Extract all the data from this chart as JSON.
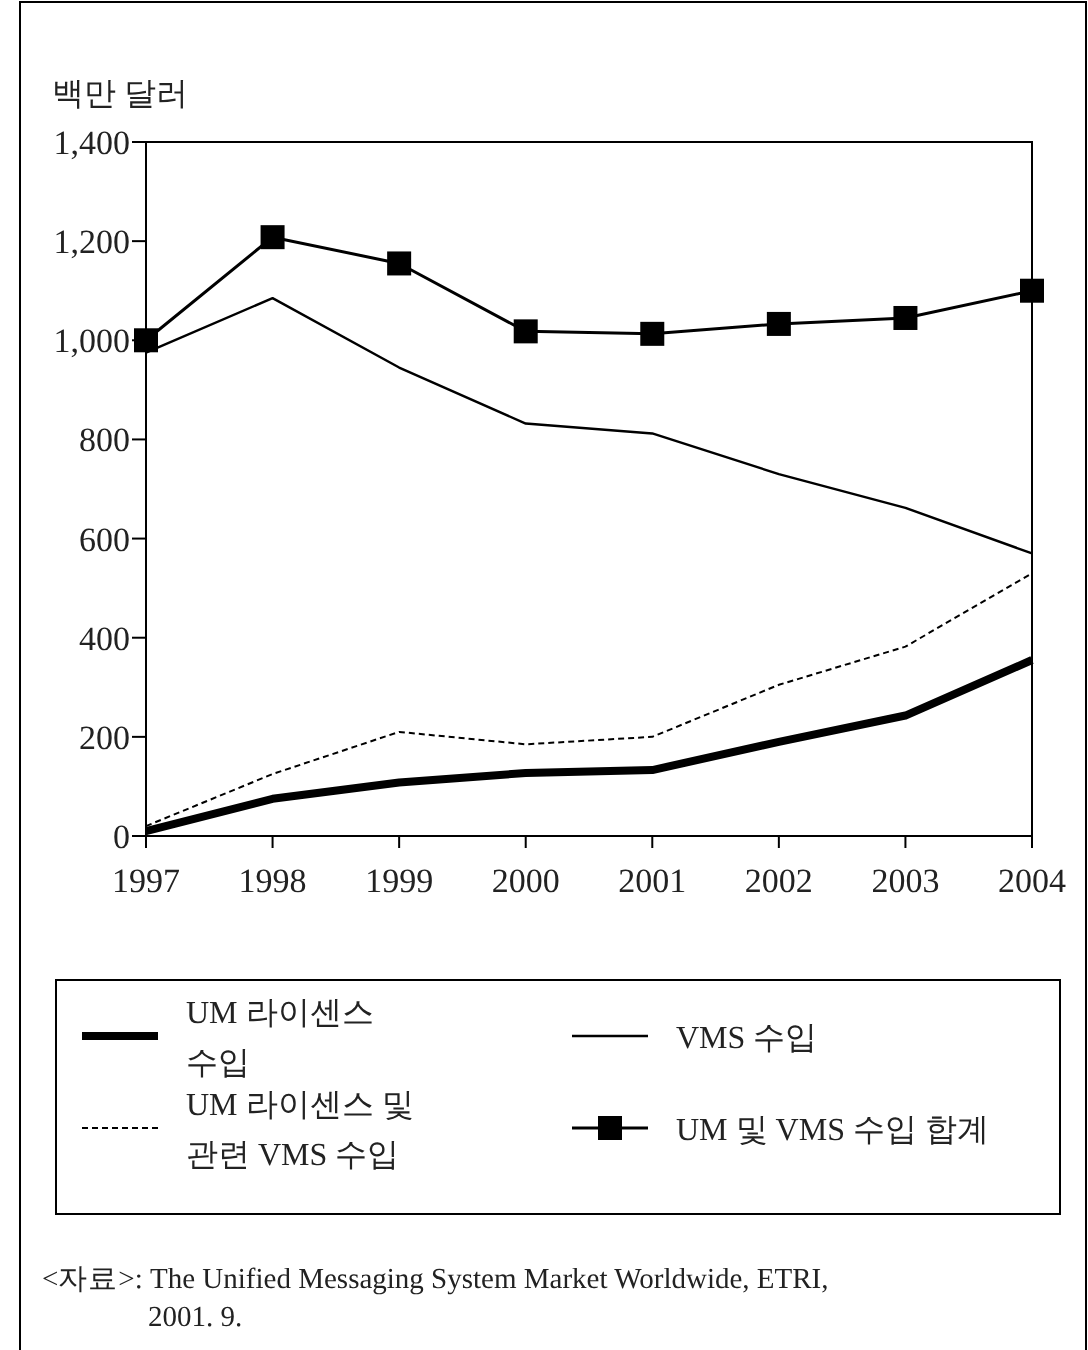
{
  "chart_data": {
    "type": "line",
    "ylabel": "백만 달러",
    "x": [
      1997,
      1998,
      1999,
      2000,
      2001,
      2002,
      2003,
      2004
    ],
    "xlim": [
      1997,
      2004
    ],
    "xticks": [
      1997,
      1998,
      1999,
      2000,
      2001,
      2002,
      2003,
      2004
    ],
    "ylim": [
      0,
      1400
    ],
    "yticks": [
      0,
      {
        "value": 200,
        "label": "200"
      },
      {
        "value": 400,
        "label": "400"
      },
      {
        "value": 600,
        "label": "600"
      },
      {
        "value": 800,
        "label": "800"
      },
      {
        "value": 1000,
        "label": "1,000"
      },
      {
        "value": 1200,
        "label": "1,200"
      },
      {
        "value": 1400,
        "label": "1,400"
      }
    ],
    "grid": false,
    "legend": "bottom",
    "series": [
      {
        "name": "UM 라이센스 수입",
        "color": "#000000",
        "line_style": "solid",
        "marker": "none",
        "values": [
          10,
          75,
          108,
          127,
          133,
          190,
          243,
          355
        ]
      },
      {
        "name": "VMS 수입",
        "color": "#000000",
        "line_style": "solid",
        "marker": "none",
        "values": [
          975,
          1085,
          945,
          832,
          812,
          730,
          662,
          570
        ]
      },
      {
        "name": "UM 라이센스 및 관련 VMS 수입",
        "color": "#000000",
        "line_style": "dashed",
        "marker": "none",
        "values": [
          20,
          125,
          210,
          185,
          200,
          305,
          382,
          530
        ]
      },
      {
        "name": "UM 및 VMS 수입 합계",
        "color": "#000000",
        "line_style": "solid",
        "marker": "square",
        "values": [
          1000,
          1208,
          1155,
          1018,
          1013,
          1033,
          1045,
          1100
        ]
      }
    ],
    "annotations": [
      "<자료>: The Unified Messaging System Market Worldwide, ETRI, 2001. 9."
    ]
  }
}
